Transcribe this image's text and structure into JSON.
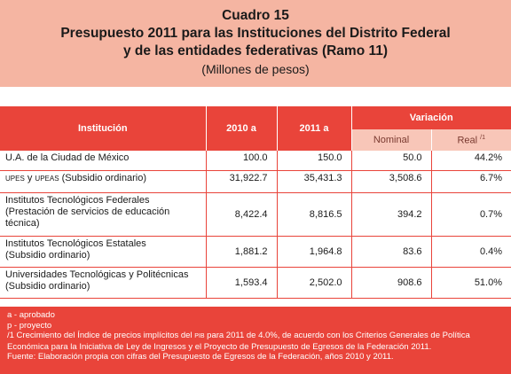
{
  "header": {
    "title": "Cuadro 15",
    "subtitle_line1": "Presupuesto 2011 para las Instituciones del Distrito Federal",
    "subtitle_line2": "y de las entidades federativas (Ramo 11)",
    "units": "(Millones de pesos)"
  },
  "table": {
    "col_institucion": "Institución",
    "col_2010": "2010 a",
    "col_2011": "2011 a",
    "col_variacion": "Variación",
    "col_nominal": "Nominal",
    "col_real": "Real",
    "col_real_mark": "/1",
    "rows": [
      {
        "inst": "U.A. de la Ciudad de México",
        "v2010": "100.0",
        "v2011": "150.0",
        "nominal": "50.0",
        "real": "44.2%"
      },
      {
        "inst_sc1": "UPES",
        "inst_mid": " y ",
        "inst_sc2": "UPEAS",
        "inst_rest": " (Subsidio ordinario)",
        "v2010": "31,922.7",
        "v2011": "35,431.3",
        "nominal": "3,508.6",
        "real": "6.7%"
      },
      {
        "inst_l1": "Institutos Tecnológicos Federales",
        "inst_l2": "(Prestación de servicios de educación",
        "inst_l3": "técnica)",
        "v2010": "8,422.4",
        "v2011": "8,816.5",
        "nominal": "394.2",
        "real": "0.7%"
      },
      {
        "inst_l1": "Institutos Tecnológicos Estatales",
        "inst_l2": "(Subsidio ordinario)",
        "v2010": "1,881.2",
        "v2011": "1,964.8",
        "nominal": "83.6",
        "real": "0.4%"
      },
      {
        "inst_l1": "Universidades Tecnológicas y Politécnicas",
        "inst_l2": "(Subsidio ordinario)",
        "v2010": "1,593.4",
        "v2011": "2,502.0",
        "nominal": "908.6",
        "real": "51.0%"
      }
    ]
  },
  "footer": {
    "line1": "a - aprobado",
    "line2": "p - proyecto",
    "line3_a": "/1 Crecimiento del Índice de precios implícitos del ",
    "line3_sc": "PIB",
    "line3_b": " para 2011 de 4.0%, de acuerdo con los Criterios Generales de Política",
    "line4": "Económica para la Iniciativa de Ley de Ingresos y el Proyecto de Presupuesto de Egresos de la Federación 2011.",
    "line5": "Fuente: Elaboración propia con cifras del Presupuesto de Egresos de la Federación, años 2010 y 2011."
  },
  "colors": {
    "header_bg": "#f5b5a2",
    "accent_red": "#e9443a",
    "sub_header_bg": "#f8c6b8"
  }
}
